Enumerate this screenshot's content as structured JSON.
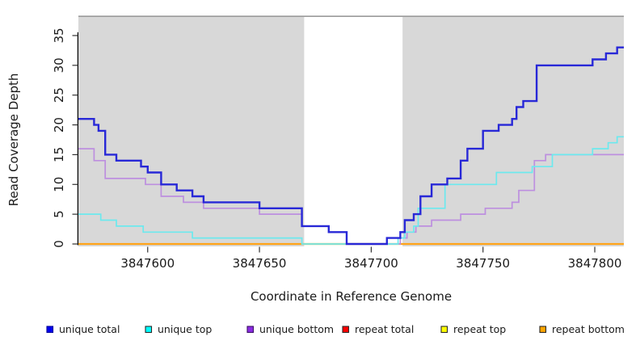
{
  "chart_data": {
    "type": "line",
    "subtype": "step",
    "title": "",
    "xlabel": "Coordinate in Reference Genome",
    "ylabel": "Read Coverage Depth",
    "xlim": [
      3847569,
      3847813
    ],
    "ylim": [
      0,
      38
    ],
    "x_ticks": [
      3847600,
      3847650,
      3847700,
      3847750,
      3847800
    ],
    "y_ticks": [
      0,
      5,
      10,
      15,
      20,
      25,
      30,
      35
    ],
    "grid": false,
    "background": {
      "plot_fill": "#d8d8d8",
      "unshaded_region": {
        "from": 3847670,
        "to": 3847714,
        "fill": "#ffffff"
      },
      "top_border_color": "#9a9a9a"
    },
    "series": [
      {
        "name": "unique total",
        "color": "#2828d7",
        "line_width": 2.4,
        "points": [
          [
            3847569,
            21
          ],
          [
            3847576,
            20
          ],
          [
            3847578,
            19
          ],
          [
            3847581,
            15
          ],
          [
            3847586,
            14
          ],
          [
            3847597,
            13
          ],
          [
            3847600,
            12
          ],
          [
            3847606,
            10
          ],
          [
            3847613,
            9
          ],
          [
            3847620,
            8
          ],
          [
            3847625,
            7
          ],
          [
            3847650,
            6
          ],
          [
            3847669,
            3
          ],
          [
            3847681,
            2
          ],
          [
            3847689,
            0
          ],
          [
            3847707,
            1
          ],
          [
            3847713,
            2
          ],
          [
            3847715,
            4
          ],
          [
            3847719,
            5
          ],
          [
            3847722,
            8
          ],
          [
            3847727,
            10
          ],
          [
            3847734,
            11
          ],
          [
            3847740,
            14
          ],
          [
            3847743,
            16
          ],
          [
            3847750,
            19
          ],
          [
            3847757,
            20
          ],
          [
            3847763,
            21
          ],
          [
            3847765,
            23
          ],
          [
            3847768,
            24
          ],
          [
            3847774,
            30
          ],
          [
            3847799,
            31
          ],
          [
            3847805,
            32
          ],
          [
            3847810,
            33
          ]
        ]
      },
      {
        "name": "unique top",
        "color": "#6ce9ee",
        "line_width": 1.7,
        "points": [
          [
            3847569,
            5
          ],
          [
            3847579,
            4
          ],
          [
            3847586,
            3
          ],
          [
            3847598,
            2
          ],
          [
            3847620,
            1
          ],
          [
            3847669,
            0
          ],
          [
            3847712,
            1
          ],
          [
            3847715,
            2
          ],
          [
            3847719,
            3
          ],
          [
            3847721,
            6
          ],
          [
            3847733,
            10
          ],
          [
            3847756,
            12
          ],
          [
            3847772,
            13
          ],
          [
            3847781,
            15
          ],
          [
            3847799,
            16
          ],
          [
            3847806,
            17
          ],
          [
            3847810,
            18
          ]
        ]
      },
      {
        "name": "unique bottom",
        "color": "#bd8fdf",
        "line_width": 1.7,
        "points": [
          [
            3847569,
            16
          ],
          [
            3847576,
            14
          ],
          [
            3847581,
            11
          ],
          [
            3847599,
            10
          ],
          [
            3847606,
            8
          ],
          [
            3847616,
            7
          ],
          [
            3847625,
            6
          ],
          [
            3847650,
            5
          ],
          [
            3847669,
            3
          ],
          [
            3847681,
            2
          ],
          [
            3847689,
            0
          ],
          [
            3847713,
            1
          ],
          [
            3847716,
            2
          ],
          [
            3847720,
            3
          ],
          [
            3847727,
            4
          ],
          [
            3847740,
            5
          ],
          [
            3847751,
            6
          ],
          [
            3847763,
            7
          ],
          [
            3847766,
            9
          ],
          [
            3847773,
            14
          ],
          [
            3847778,
            15
          ]
        ]
      },
      {
        "name": "repeat total",
        "color": "#ff0000",
        "line_width": 1.5,
        "points": [
          [
            3847569,
            0
          ]
        ]
      },
      {
        "name": "repeat top",
        "color": "#ffff00",
        "line_width": 1.5,
        "points": [
          [
            3847569,
            0
          ]
        ]
      },
      {
        "name": "repeat bottom",
        "color": "#ffa317",
        "line_width": 2.2,
        "points": [
          [
            3847569,
            0
          ]
        ]
      }
    ],
    "draw_order": [
      3,
      4,
      5,
      2,
      1,
      0
    ],
    "legend": {
      "position": "bottom",
      "items": [
        {
          "label": "unique total",
          "fill": "#0000ee",
          "border": "#00009a"
        },
        {
          "label": "unique top",
          "fill": "#00ffff",
          "border": "#2a2a2a"
        },
        {
          "label": "unique bottom",
          "fill": "#8a2be2",
          "border": "#3c1166"
        },
        {
          "label": "repeat total",
          "fill": "#ff0000",
          "border": "#2a2a2a"
        },
        {
          "label": "repeat top",
          "fill": "#ffff00",
          "border": "#2a2a2a"
        },
        {
          "label": "repeat bottom",
          "fill": "#ffa500",
          "border": "#2a2a2a"
        }
      ]
    }
  }
}
